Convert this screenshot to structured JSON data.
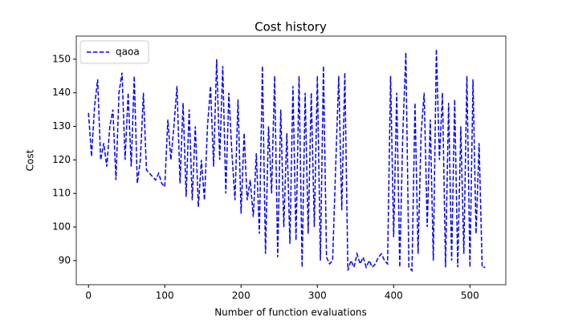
{
  "chart_data": {
    "type": "line",
    "title": "Cost history",
    "xlabel": "Number of function evaluations",
    "ylabel": "Cost",
    "x": [
      0,
      4,
      8,
      12,
      16,
      20,
      24,
      28,
      32,
      36,
      40,
      44,
      48,
      52,
      56,
      60,
      64,
      68,
      72,
      76,
      80,
      84,
      88,
      92,
      96,
      100,
      104,
      108,
      112,
      116,
      120,
      124,
      128,
      132,
      136,
      140,
      144,
      148,
      152,
      156,
      160,
      164,
      168,
      172,
      176,
      180,
      184,
      188,
      192,
      196,
      200,
      204,
      208,
      212,
      216,
      220,
      224,
      228,
      232,
      236,
      240,
      244,
      248,
      252,
      256,
      260,
      264,
      268,
      272,
      276,
      280,
      284,
      288,
      292,
      296,
      300,
      304,
      308,
      312,
      316,
      320,
      324,
      328,
      332,
      336,
      340,
      344,
      348,
      352,
      356,
      360,
      364,
      368,
      372,
      376,
      380,
      384,
      388,
      392,
      396,
      400,
      404,
      408,
      412,
      416,
      420,
      424,
      428,
      432,
      436,
      440,
      444,
      448,
      452,
      456,
      460,
      464,
      468,
      472,
      476,
      480,
      484,
      488,
      492,
      496,
      500,
      504,
      508,
      512,
      516,
      520
    ],
    "series": [
      {
        "name": "qaoa",
        "color": "#0000ff",
        "linestyle": "dashed",
        "values": [
          134,
          121,
          136,
          144,
          120,
          125,
          118,
          130,
          135,
          114,
          140,
          146,
          120,
          140,
          118,
          145,
          113,
          120,
          140,
          117,
          116,
          115,
          114,
          116,
          113,
          112,
          132,
          120,
          130,
          142,
          113,
          137,
          109,
          135,
          108,
          130,
          106,
          120,
          108,
          130,
          142,
          118,
          150,
          120,
          148,
          110,
          140,
          122,
          108,
          138,
          104,
          128,
          108,
          114,
          103,
          122,
          98,
          148,
          92,
          130,
          110,
          145,
          91,
          135,
          100,
          128,
          95,
          142,
          96,
          145,
          88,
          140,
          98,
          140,
          100,
          145,
          90,
          148,
          91,
          89,
          90,
          118,
          145,
          105,
          146,
          87,
          90,
          88,
          92,
          89,
          91,
          88,
          90,
          88,
          89,
          91,
          92,
          90,
          89,
          145,
          97,
          140,
          88,
          128,
          152,
          88,
          87,
          137,
          92,
          128,
          140,
          100,
          132,
          90,
          153,
          120,
          140,
          88,
          137,
          90,
          138,
          88,
          130,
          92,
          145,
          88,
          144,
          98,
          125,
          88,
          88
        ]
      }
    ],
    "xlim": [
      -16,
      547
    ],
    "ylim": [
      82.8,
      156.9
    ],
    "xticks": [
      0,
      100,
      200,
      300,
      400,
      500
    ],
    "yticks": [
      90,
      100,
      110,
      120,
      130,
      140,
      150
    ],
    "legend": "upper left"
  }
}
